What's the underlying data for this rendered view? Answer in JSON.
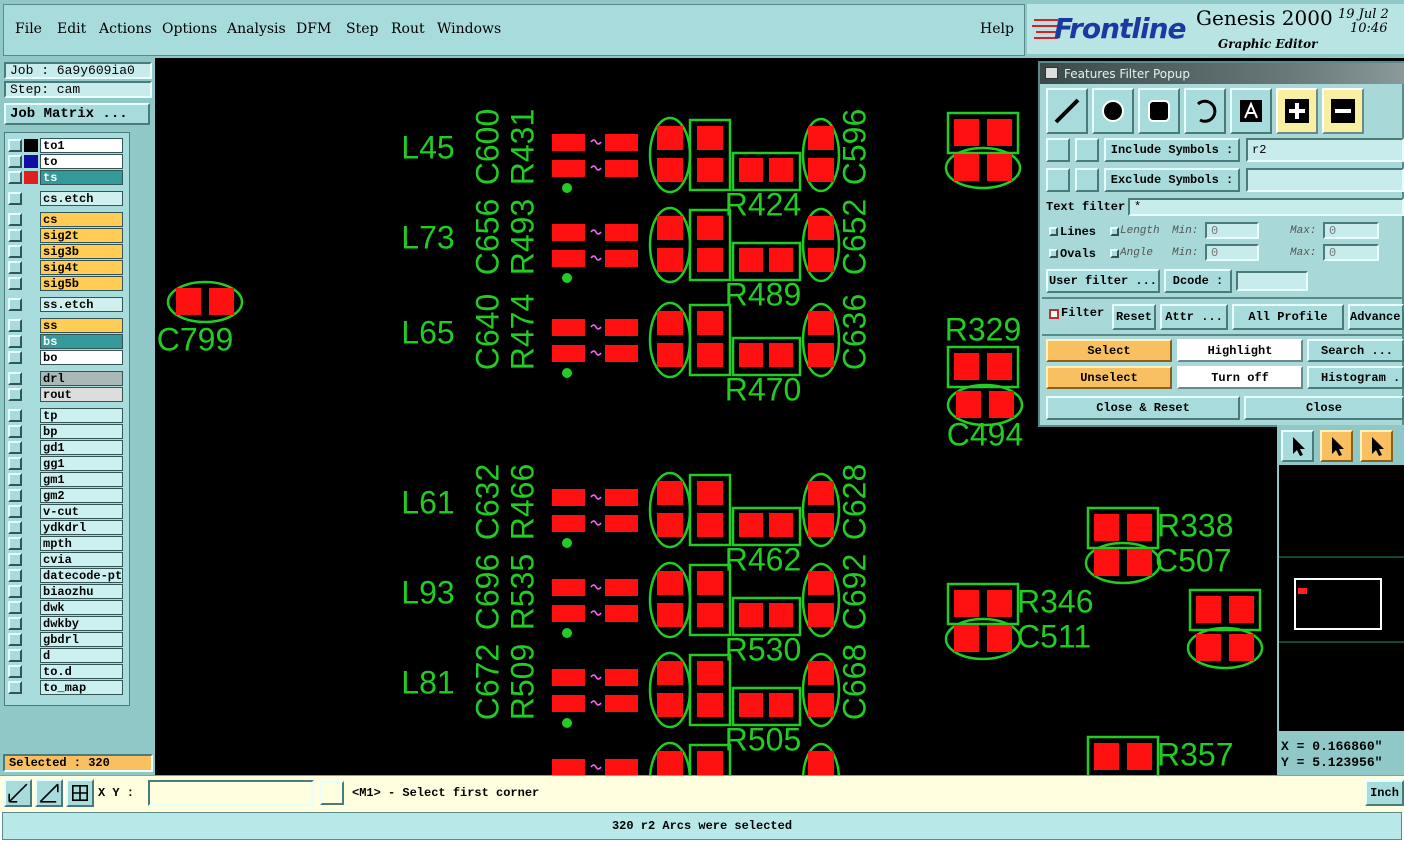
{
  "menu": {
    "items": [
      "File",
      "Edit",
      "Actions",
      "Options",
      "Analysis",
      "DFM",
      "Step",
      "Rout",
      "Windows"
    ],
    "help": "Help"
  },
  "brand": {
    "logo": "Frontline",
    "product": "Genesis 2000",
    "subtitle": "Graphic Editor",
    "date": "19 Jul 2",
    "time": "10:46"
  },
  "job": {
    "job": "Job : 6a9y609ia0",
    "step": "Step: cam",
    "matrix": "Job Matrix ..."
  },
  "layers": [
    {
      "name": "to1",
      "color": "#ffffff"
    },
    {
      "name": "to",
      "color": "#ffffff"
    },
    {
      "name": "ts",
      "color": "#339999"
    },
    {
      "name": "cs.etch",
      "color": "#d0f0f0"
    },
    {
      "name": "cs",
      "color": "#ffcc55"
    },
    {
      "name": "sig2t",
      "color": "#ffcc55"
    },
    {
      "name": "sig3b",
      "color": "#ffcc55"
    },
    {
      "name": "sig4t",
      "color": "#ffcc55"
    },
    {
      "name": "sig5b",
      "color": "#ffcc55"
    },
    {
      "name": "ss.etch",
      "color": "#d0f0f0"
    },
    {
      "name": "ss",
      "color": "#ffcc55"
    },
    {
      "name": "bs",
      "color": "#339999"
    },
    {
      "name": "bo",
      "color": "#ffffff"
    },
    {
      "name": "drl",
      "color": "#aab8b8"
    },
    {
      "name": "rout",
      "color": "#dddddd"
    },
    {
      "name": "tp",
      "color": "#ccf0f0"
    },
    {
      "name": "bp",
      "color": "#ccf0f0"
    },
    {
      "name": "gd1",
      "color": "#ccf0f0"
    },
    {
      "name": "gg1",
      "color": "#ccf0f0"
    },
    {
      "name": "gm1",
      "color": "#ccf0f0"
    },
    {
      "name": "gm2",
      "color": "#ccf0f0"
    },
    {
      "name": "v-cut",
      "color": "#ccf0f0"
    },
    {
      "name": "ydkdrl",
      "color": "#ccf0f0"
    },
    {
      "name": "mpth",
      "color": "#ccf0f0"
    },
    {
      "name": "cvia",
      "color": "#ccf0f0"
    },
    {
      "name": "datecode-pt",
      "color": "#ccf0f0"
    },
    {
      "name": "biaozhu",
      "color": "#ccf0f0"
    },
    {
      "name": "dwk",
      "color": "#ccf0f0"
    },
    {
      "name": "dwkby",
      "color": "#ccf0f0"
    },
    {
      "name": "gbdrl",
      "color": "#ccf0f0"
    },
    {
      "name": "d",
      "color": "#ccf0f0"
    },
    {
      "name": "to.d",
      "color": "#ccf0f0"
    },
    {
      "name": "to_map",
      "color": "#ccf0f0"
    }
  ],
  "selected": "Selected : 320",
  "canvas": {
    "groups": [
      {
        "l": "L45",
        "c_left": "C600",
        "r_left": "R431",
        "r_bottom": "R424",
        "c_right": "C596"
      },
      {
        "l": "L73",
        "c_left": "C656",
        "r_left": "R493",
        "r_bottom": "R489",
        "c_right": "C652"
      },
      {
        "l": "L65",
        "c_left": "C640",
        "r_left": "R474",
        "r_bottom": "R470",
        "c_right": "C636"
      },
      {
        "l": "L61",
        "c_left": "C632",
        "r_left": "R466",
        "r_bottom": "R462",
        "c_right": "C628"
      },
      {
        "l": "L93",
        "c_left": "C696",
        "r_left": "R535",
        "r_bottom": "R530",
        "c_right": "C692"
      },
      {
        "l": "L81",
        "c_left": "C672",
        "r_left": "R509",
        "r_bottom": "R505",
        "c_right": "C668"
      }
    ],
    "parts": [
      "C799",
      "R329",
      "C494",
      "R338",
      "C507",
      "R346",
      "C511",
      "R357"
    ]
  },
  "filter_popup": {
    "title": "Features Filter Popup",
    "include_label": "Include Symbols :",
    "include_value": "r2",
    "exclude_label": "Exclude Symbols :",
    "text_filter_label": "Text filter",
    "text_filter_value": "*",
    "lines": "Lines",
    "length": "Length",
    "ovals": "Ovals",
    "angle": "Angle",
    "min": "Min:",
    "max": "Max:",
    "range_value": "0",
    "user_filter": "User filter ...",
    "dcode": "Dcode :",
    "filter": "Filter",
    "reset": "Reset",
    "attr": "Attr ...",
    "all_profile": "All Profile",
    "advanced": "Advance",
    "select": "Select",
    "highlight": "Highlight",
    "search": "Search ...",
    "unselect": "Unselect",
    "turn_off": "Turn off",
    "histogram": "Histogram ...",
    "close_reset": "Close & Reset",
    "close": "Close"
  },
  "coords": {
    "x": "X = 0.166860\"",
    "y": "Y = 5.123956\""
  },
  "command": {
    "xy": "X Y :",
    "prompt": "<M1> - Select first corner",
    "units": "Inch"
  },
  "status": "320 r2 Arcs were selected"
}
